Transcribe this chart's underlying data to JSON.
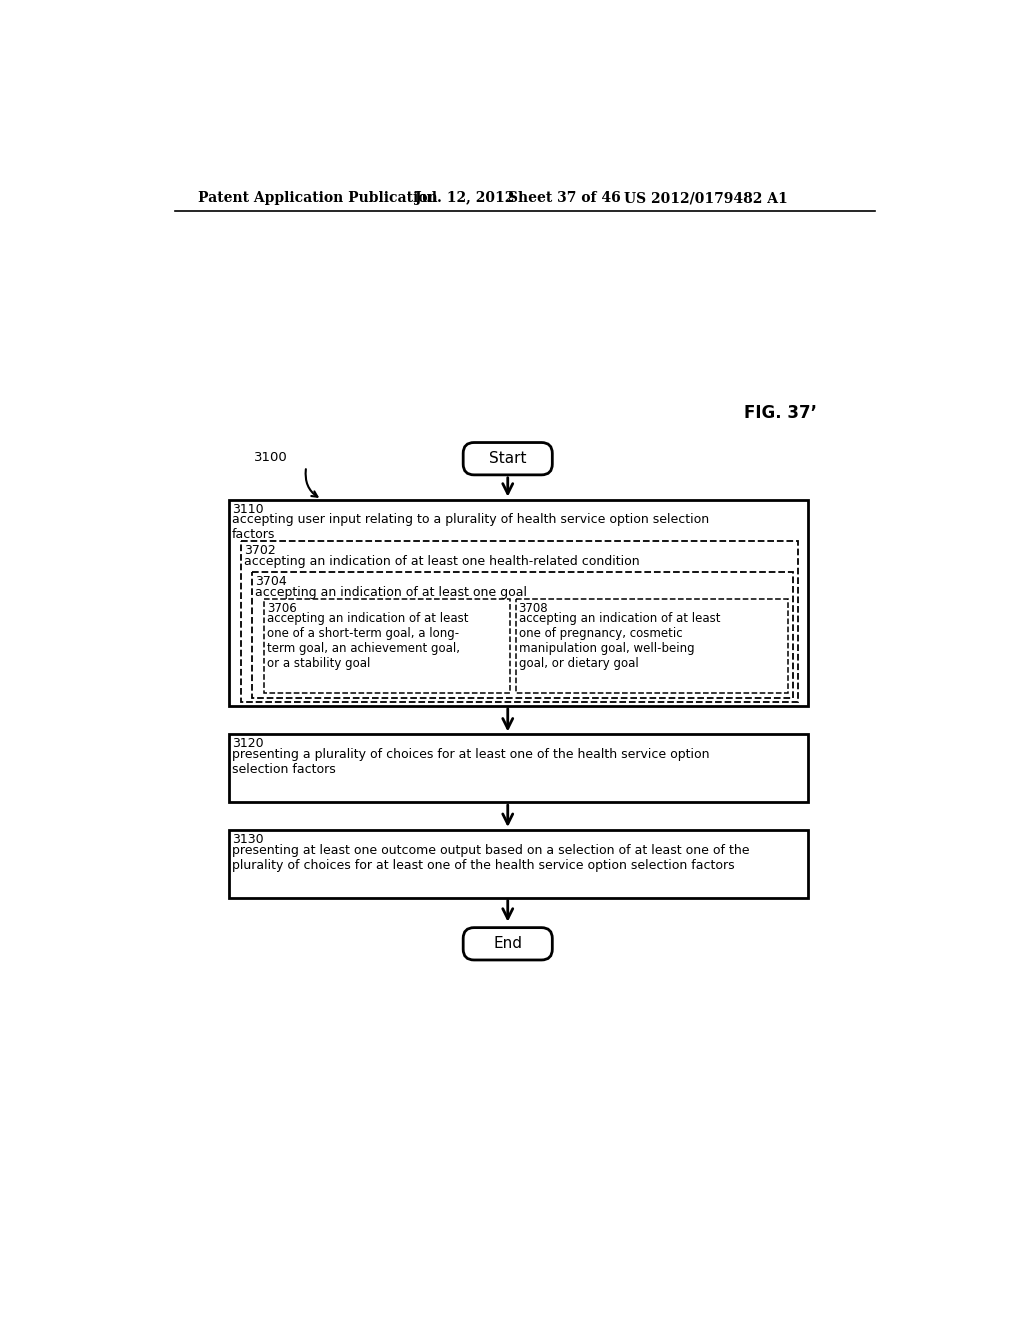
{
  "bg_color": "#ffffff",
  "header_line1": "Patent Application Publication",
  "header_line2": "Jul. 12, 2012",
  "header_line3": "Sheet 37 of 46",
  "header_line4": "US 2012/0179482 A1",
  "fig_label": "FIG. 37’",
  "ref_3100": "3100",
  "start_label": "Start",
  "end_label": "End",
  "box3110_id": "3110",
  "box3110_text": "accepting user input relating to a plurality of health service option selection\nfactors",
  "box3702_id": "3702",
  "box3702_text": "accepting an indication of at least one health-related condition",
  "box3704_id": "3704",
  "box3704_text": "accepting an indication of at least one goal",
  "box3706_id": "3706",
  "box3706_text": "accepting an indication of at least\none of a short-term goal, a long-\nterm goal, an achievement goal,\nor a stability goal",
  "box3708_id": "3708",
  "box3708_text": "accepting an indication of at least\none of pregnancy, cosmetic\nmanipulation goal, well-being\ngoal, or dietary goal",
  "box3120_id": "3120",
  "box3120_text": "presenting a plurality of choices for at least one of the health service option\nselection factors",
  "box3130_id": "3130",
  "box3130_text": "presenting at least one outcome output based on a selection of at least one of the\nplurality of choices for at least one of the health service option selection factors"
}
